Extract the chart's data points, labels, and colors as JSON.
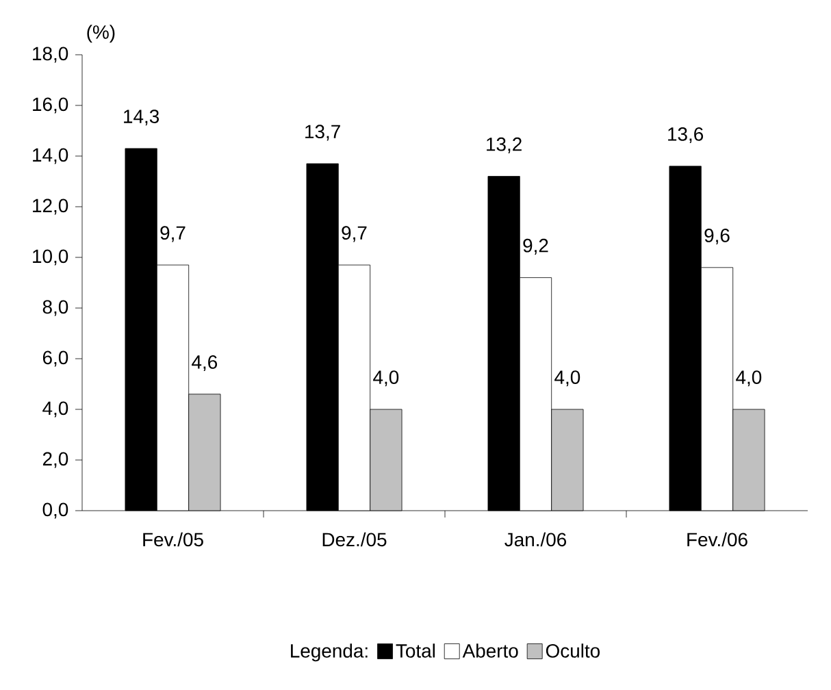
{
  "chart_data": {
    "type": "bar",
    "ylabel": "(%)",
    "legend_title": "Legenda:",
    "legend": "bottom",
    "categories": [
      "Fev./05",
      "Dez./05",
      "Jan./06",
      "Fev./06"
    ],
    "ylim": [
      0,
      18
    ],
    "yticks": [
      {
        "value": 0,
        "label": "0,0"
      },
      {
        "value": 2,
        "label": "2,0"
      },
      {
        "value": 4,
        "label": "4,0"
      },
      {
        "value": 6,
        "label": "6,0"
      },
      {
        "value": 8,
        "label": "8,0"
      },
      {
        "value": 10,
        "label": "10,0"
      },
      {
        "value": 12,
        "label": "12,0"
      },
      {
        "value": 14,
        "label": "14,0"
      },
      {
        "value": 16,
        "label": "16,0"
      },
      {
        "value": 18,
        "label": "18,0"
      }
    ],
    "series": [
      {
        "name": "Total",
        "color": "#000000",
        "values": [
          14.3,
          13.7,
          13.2,
          13.6
        ],
        "value_labels": [
          "14,3",
          "13,7",
          "13,2",
          "13,6"
        ]
      },
      {
        "name": "Aberto",
        "color": "#ffffff",
        "values": [
          9.7,
          9.7,
          9.2,
          9.6
        ],
        "value_labels": [
          "9,7",
          "9,7",
          "9,2",
          "9,6"
        ]
      },
      {
        "name": "Oculto",
        "color": "#c0c0c0",
        "values": [
          4.6,
          4.0,
          4.0,
          4.0
        ],
        "value_labels": [
          "4,6",
          "4,0",
          "4,0",
          "4,0"
        ]
      }
    ]
  }
}
